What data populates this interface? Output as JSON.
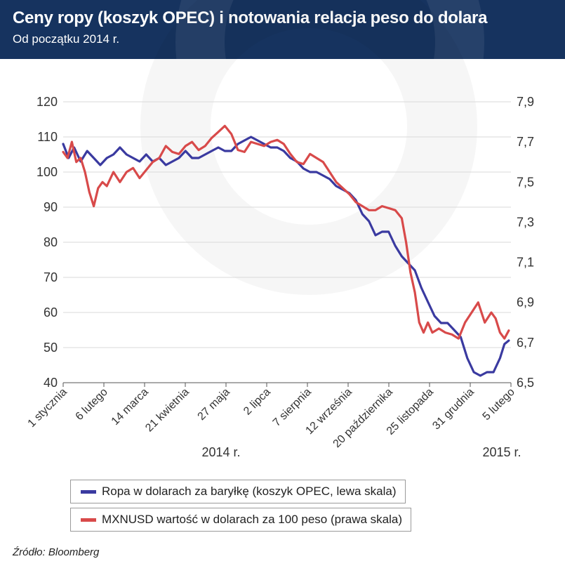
{
  "header": {
    "title": "Ceny ropy (koszyk OPEC) i notowania relacja peso do dolara",
    "subtitle": "Od początku 2014 r."
  },
  "colors": {
    "oil": "#3a3aa0",
    "mxn": "#d84a4a",
    "header_bg": "#16335f",
    "grid": "#d9d9d9"
  },
  "chart_data": {
    "type": "line",
    "title": "Ceny ropy (koszyk OPEC) i notowania relacja peso do dolara",
    "subtitle": "Od początku 2014 r.",
    "x_tick_labels": [
      "1 stycznia",
      "6 lutego",
      "14 marca",
      "21 kwietnia",
      "27 maja",
      "2 lipca",
      "7 sierpnia",
      "12 września",
      "20 października",
      "25 listopada",
      "31 grudnia",
      "5 lutego"
    ],
    "year_labels": [
      "2014 r.",
      "2015 r."
    ],
    "left_axis": {
      "ticks": [
        "120",
        "110",
        "100",
        "90",
        "80",
        "70",
        "60",
        "50",
        "40"
      ],
      "ylim": [
        40,
        120
      ]
    },
    "right_axis": {
      "ticks": [
        "7,9",
        "7,7",
        "7,5",
        "7,3",
        "7,1",
        "6,9",
        "6,7",
        "6,5"
      ],
      "ylim": [
        6.5,
        7.9
      ]
    },
    "x_range_days": [
      0,
      410
    ],
    "series": [
      {
        "name": "Ropa w dolarach za baryłkę (koszyk OPEC, lewa skala)",
        "axis": "left",
        "points": [
          [
            0,
            108
          ],
          [
            5,
            104
          ],
          [
            10,
            107
          ],
          [
            16,
            103
          ],
          [
            22,
            106
          ],
          [
            28,
            104
          ],
          [
            34,
            102
          ],
          [
            40,
            104
          ],
          [
            46,
            105
          ],
          [
            52,
            107
          ],
          [
            58,
            105
          ],
          [
            64,
            104
          ],
          [
            70,
            103
          ],
          [
            76,
            105
          ],
          [
            82,
            103
          ],
          [
            88,
            104
          ],
          [
            94,
            102
          ],
          [
            100,
            103
          ],
          [
            106,
            104
          ],
          [
            112,
            106
          ],
          [
            118,
            104
          ],
          [
            124,
            104
          ],
          [
            130,
            105
          ],
          [
            136,
            106
          ],
          [
            142,
            107
          ],
          [
            148,
            106
          ],
          [
            154,
            106
          ],
          [
            160,
            108
          ],
          [
            166,
            109
          ],
          [
            172,
            110
          ],
          [
            178,
            109
          ],
          [
            184,
            108
          ],
          [
            190,
            107
          ],
          [
            196,
            107
          ],
          [
            202,
            106
          ],
          [
            208,
            104
          ],
          [
            214,
            103
          ],
          [
            220,
            101
          ],
          [
            226,
            100
          ],
          [
            232,
            100
          ],
          [
            238,
            99
          ],
          [
            244,
            98
          ],
          [
            250,
            96
          ],
          [
            256,
            95
          ],
          [
            262,
            94
          ],
          [
            268,
            92
          ],
          [
            274,
            88
          ],
          [
            280,
            86
          ],
          [
            286,
            82
          ],
          [
            292,
            83
          ],
          [
            298,
            83
          ],
          [
            304,
            79
          ],
          [
            310,
            76
          ],
          [
            316,
            74
          ],
          [
            322,
            72
          ],
          [
            328,
            67
          ],
          [
            334,
            63
          ],
          [
            340,
            59
          ],
          [
            346,
            57
          ],
          [
            352,
            57
          ],
          [
            358,
            55
          ],
          [
            364,
            53
          ],
          [
            370,
            47
          ],
          [
            376,
            43
          ],
          [
            382,
            42
          ],
          [
            388,
            43
          ],
          [
            394,
            43
          ],
          [
            400,
            47
          ],
          [
            404,
            51
          ],
          [
            408,
            52
          ]
        ]
      },
      {
        "name": "MXNUSD wartość w dolarach za 100 peso (prawa skala)",
        "axis": "right",
        "points": [
          [
            0,
            7.65
          ],
          [
            4,
            7.62
          ],
          [
            8,
            7.7
          ],
          [
            12,
            7.6
          ],
          [
            16,
            7.62
          ],
          [
            20,
            7.55
          ],
          [
            24,
            7.45
          ],
          [
            28,
            7.38
          ],
          [
            32,
            7.47
          ],
          [
            36,
            7.5
          ],
          [
            40,
            7.48
          ],
          [
            46,
            7.55
          ],
          [
            52,
            7.5
          ],
          [
            58,
            7.55
          ],
          [
            64,
            7.57
          ],
          [
            70,
            7.52
          ],
          [
            76,
            7.56
          ],
          [
            82,
            7.6
          ],
          [
            88,
            7.62
          ],
          [
            94,
            7.68
          ],
          [
            100,
            7.65
          ],
          [
            106,
            7.64
          ],
          [
            112,
            7.68
          ],
          [
            118,
            7.7
          ],
          [
            124,
            7.66
          ],
          [
            130,
            7.68
          ],
          [
            136,
            7.72
          ],
          [
            142,
            7.75
          ],
          [
            148,
            7.78
          ],
          [
            154,
            7.74
          ],
          [
            160,
            7.66
          ],
          [
            166,
            7.65
          ],
          [
            172,
            7.7
          ],
          [
            178,
            7.69
          ],
          [
            184,
            7.68
          ],
          [
            190,
            7.7
          ],
          [
            196,
            7.71
          ],
          [
            202,
            7.69
          ],
          [
            208,
            7.64
          ],
          [
            214,
            7.6
          ],
          [
            220,
            7.59
          ],
          [
            226,
            7.64
          ],
          [
            232,
            7.62
          ],
          [
            238,
            7.6
          ],
          [
            244,
            7.55
          ],
          [
            250,
            7.5
          ],
          [
            256,
            7.47
          ],
          [
            262,
            7.44
          ],
          [
            268,
            7.4
          ],
          [
            274,
            7.38
          ],
          [
            280,
            7.36
          ],
          [
            286,
            7.36
          ],
          [
            292,
            7.38
          ],
          [
            298,
            7.37
          ],
          [
            304,
            7.36
          ],
          [
            310,
            7.32
          ],
          [
            314,
            7.2
          ],
          [
            318,
            7.05
          ],
          [
            322,
            6.95
          ],
          [
            326,
            6.8
          ],
          [
            330,
            6.75
          ],
          [
            334,
            6.8
          ],
          [
            338,
            6.75
          ],
          [
            344,
            6.77
          ],
          [
            350,
            6.75
          ],
          [
            356,
            6.74
          ],
          [
            362,
            6.72
          ],
          [
            368,
            6.8
          ],
          [
            374,
            6.85
          ],
          [
            380,
            6.9
          ],
          [
            386,
            6.8
          ],
          [
            392,
            6.85
          ],
          [
            396,
            6.82
          ],
          [
            400,
            6.75
          ],
          [
            404,
            6.72
          ],
          [
            408,
            6.76
          ]
        ]
      }
    ]
  },
  "legend": {
    "oil": "Ropa w dolarach za baryłkę (koszyk OPEC, lewa skala)",
    "mxn": "MXNUSD wartość w dolarach za 100 peso (prawa skala)"
  },
  "source": "Źródło: Bloomberg"
}
